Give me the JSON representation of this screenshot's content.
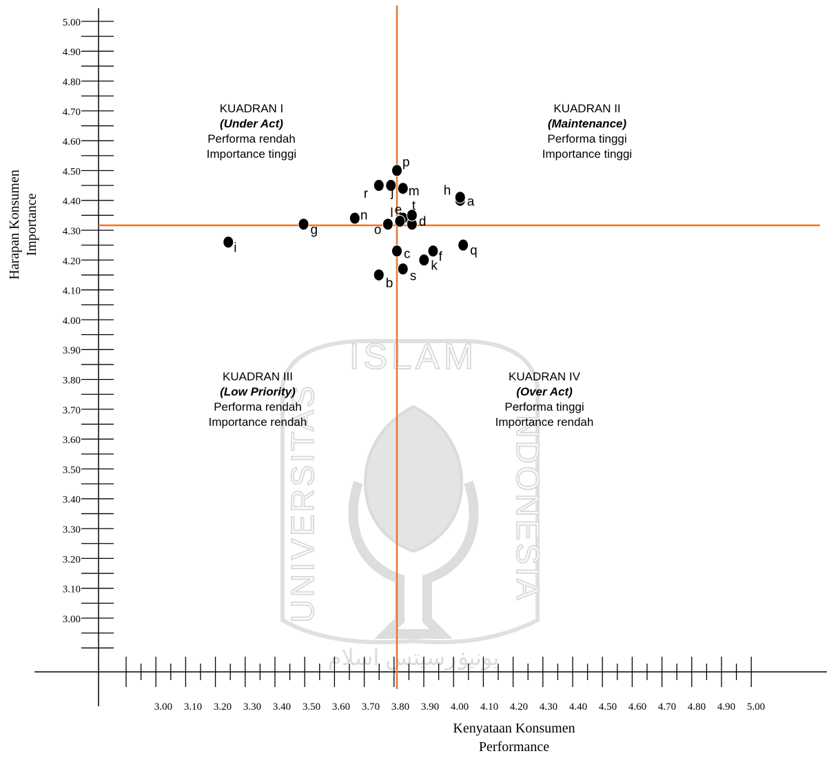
{
  "colors": {
    "axis": "#000000",
    "quadrant_line": "#e8762c",
    "point": "#000000",
    "watermark": "#d6d6d6"
  },
  "chart_data": {
    "type": "scatter",
    "title": "",
    "xlabel": "Kenyataan Konsumen",
    "xlabel_sub": "Performance",
    "ylabel": "Harapan Konsumen",
    "ylabel_sub": "Importance",
    "xlim": [
      2.8,
      5.1
    ],
    "ylim": [
      2.9,
      5.05
    ],
    "x_ticks": [
      "3.00",
      "3.10",
      "3.20",
      "3.30",
      "3.40",
      "3.50",
      "3.60",
      "3.70",
      "3.80",
      "3.90",
      "4.00",
      "4.10",
      "4.20",
      "4.30",
      "4.40",
      "4.50",
      "4.60",
      "4.70",
      "4.80",
      "4.90",
      "5.00"
    ],
    "y_ticks": [
      "5.00",
      "4.90",
      "4.80",
      "4.70",
      "4.60",
      "4.50",
      "4.40",
      "4.30",
      "4.20",
      "4.10",
      "4.00",
      "3.90",
      "3.80",
      "3.70",
      "3.60",
      "3.50",
      "3.40",
      "3.30",
      "3.20",
      "3.10",
      "3.00"
    ],
    "x_mean": 3.81,
    "y_mean": 4.31,
    "grid": false,
    "points": [
      {
        "label": "a",
        "x": 4.02,
        "y": 4.4
      },
      {
        "label": "b",
        "x": 3.75,
        "y": 4.15
      },
      {
        "label": "c",
        "x": 3.81,
        "y": 4.23
      },
      {
        "label": "d",
        "x": 3.86,
        "y": 4.32
      },
      {
        "label": "e",
        "x": 3.83,
        "y": 4.34
      },
      {
        "label": "f",
        "x": 3.93,
        "y": 4.23
      },
      {
        "label": "g",
        "x": 3.5,
        "y": 4.32
      },
      {
        "label": "h",
        "x": 4.02,
        "y": 4.41
      },
      {
        "label": "i",
        "x": 3.25,
        "y": 4.26
      },
      {
        "label": "j",
        "x": 3.79,
        "y": 4.45
      },
      {
        "label": "k",
        "x": 3.9,
        "y": 4.2
      },
      {
        "label": "l",
        "x": 3.82,
        "y": 4.33
      },
      {
        "label": "m",
        "x": 3.83,
        "y": 4.44
      },
      {
        "label": "n",
        "x": 3.67,
        "y": 4.34
      },
      {
        "label": "o",
        "x": 3.78,
        "y": 4.32
      },
      {
        "label": "p",
        "x": 3.81,
        "y": 4.5
      },
      {
        "label": "q",
        "x": 4.03,
        "y": 4.25
      },
      {
        "label": "r",
        "x": 3.75,
        "y": 4.45
      },
      {
        "label": "s",
        "x": 3.83,
        "y": 4.17
      },
      {
        "label": "t",
        "x": 3.86,
        "y": 4.35
      }
    ],
    "quadrants": [
      {
        "id": "q1",
        "title": "KUADRAN I",
        "subtitle": "(Under Act)",
        "line1": "Performa rendah",
        "line2": "Importance tinggi"
      },
      {
        "id": "q2",
        "title": "KUADRAN II",
        "subtitle": "(Maintenance)",
        "line1": "Performa tinggi",
        "line2": "Importance tinggi"
      },
      {
        "id": "q3",
        "title": "KUADRAN III",
        "subtitle": "(Low Priority)",
        "line1": "Performa rendah",
        "line2": "Importance rendah"
      },
      {
        "id": "q4",
        "title": "KUADRAN IV",
        "subtitle": "(Over Act)",
        "line1": "Performa tinggi",
        "line2": "Importance rendah"
      }
    ]
  },
  "watermark": {
    "top_text": "ISLAM",
    "left_text": "UNIVERSITAS",
    "right_text": "INDONESIA",
    "script_text": "يونيۏرسيتس اسلام"
  }
}
